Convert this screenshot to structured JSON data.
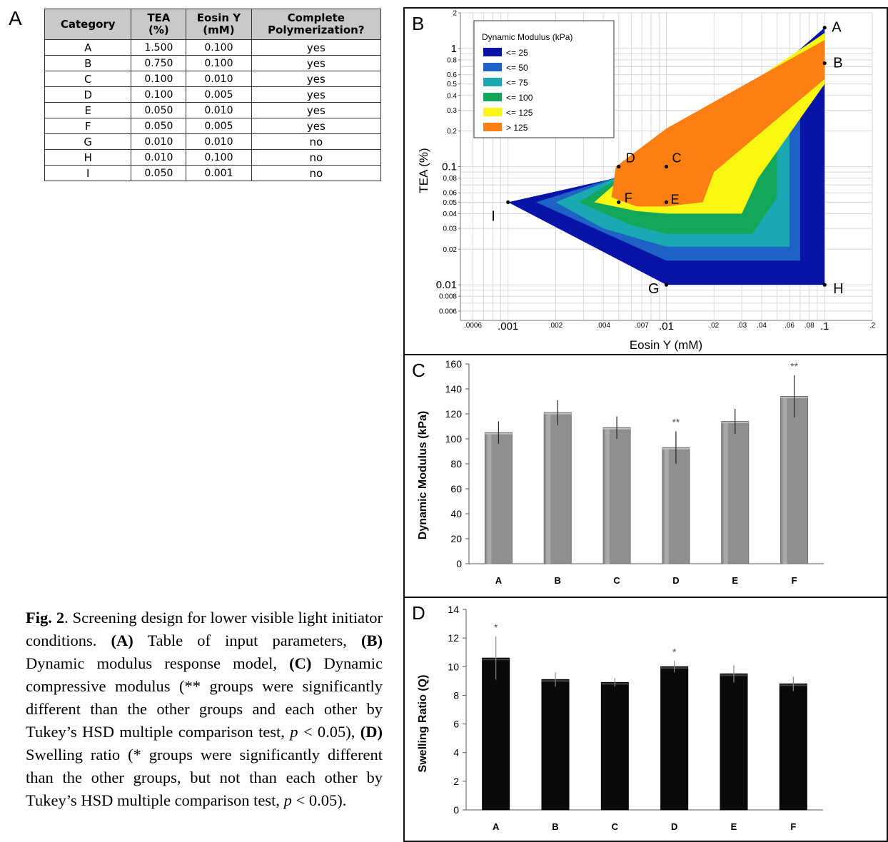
{
  "panel_labels": {
    "a": "A",
    "b": "B",
    "c": "C",
    "d": "D"
  },
  "table": {
    "headers": [
      "Category",
      "TEA (%)",
      "Eosin Y (mM)",
      "Complete Polymerization?"
    ],
    "header_lines": [
      [
        "Category"
      ],
      [
        "TEA",
        "(%)"
      ],
      [
        "Eosin Y",
        "(mM)"
      ],
      [
        "Complete",
        "Polymerization?"
      ]
    ],
    "rows": [
      [
        "A",
        "1.500",
        "0.100",
        "yes"
      ],
      [
        "B",
        "0.750",
        "0.100",
        "yes"
      ],
      [
        "C",
        "0.100",
        "0.010",
        "yes"
      ],
      [
        "D",
        "0.100",
        "0.005",
        "yes"
      ],
      [
        "E",
        "0.050",
        "0.010",
        "yes"
      ],
      [
        "F",
        "0.050",
        "0.005",
        "yes"
      ],
      [
        "G",
        "0.010",
        "0.010",
        "no"
      ],
      [
        "H",
        "0.010",
        "0.100",
        "no"
      ],
      [
        "I",
        "0.050",
        "0.001",
        "no"
      ]
    ]
  },
  "caption": {
    "fig": "Fig. 2",
    "intro": ". Screening design for lower visible light initiator conditions. ",
    "a_tag": "(A)",
    "a_text": " Table of input parameters, ",
    "b_tag": "(B)",
    "b_text": " Dynamic modulus response model, ",
    "c_tag": "(C)",
    "c_text": " Dynamic compressive modulus (** groups were significantly different than the other groups and each other by Tukey’s HSD multiple comparison test, ",
    "p1": "p",
    "c_end": " < 0.05), ",
    "d_tag": "(D)",
    "d_text": " Swelling ratio (* groups were significantly different than the other groups, but not than each other by Tukey’s HSD multiple comparison test, ",
    "p2": "p",
    "d_end": " < 0.05)."
  },
  "chart_data": [
    {
      "type": "contour",
      "xlabel": "Eosin Y (mM)",
      "ylabel": "TEA (%)",
      "x_scale": "log",
      "y_scale": "log",
      "xlim": [
        0.0005,
        0.2
      ],
      "ylim": [
        0.005,
        2
      ],
      "x_ticks": [
        ".0006",
        ".001",
        ".002",
        ".004",
        ".007",
        ".01",
        ".02",
        ".03",
        ".04",
        ".06",
        ".08",
        ".1",
        ".2"
      ],
      "y_ticks": [
        "2",
        "1",
        "0.8",
        "0.6",
        "0.5",
        "0.4",
        "0.3",
        "0.2",
        "0.1",
        "0.08",
        "0.06",
        "0.05",
        "0.04",
        "0.03",
        "0.02",
        "0.01",
        "0.008",
        "0.006"
      ],
      "legend_title": "Dynamic Modulus (kPa)",
      "legend_position": "top-left",
      "legend": [
        {
          "label": "<= 25",
          "color": "#0a13a8"
        },
        {
          "label": "<= 50",
          "color": "#1d62c4"
        },
        {
          "label": "<= 75",
          "color": "#1aa9b2"
        },
        {
          "label": "<= 100",
          "color": "#13a75c"
        },
        {
          "label": "<= 125",
          "color": "#f7f712"
        },
        {
          "label": "> 125",
          "color": "#fb7f13"
        }
      ],
      "design_points": [
        {
          "label": "A",
          "x": 0.1,
          "y": 1.5
        },
        {
          "label": "B",
          "x": 0.1,
          "y": 0.75
        },
        {
          "label": "C",
          "x": 0.01,
          "y": 0.1
        },
        {
          "label": "D",
          "x": 0.005,
          "y": 0.1
        },
        {
          "label": "E",
          "x": 0.01,
          "y": 0.05
        },
        {
          "label": "F",
          "x": 0.005,
          "y": 0.05
        },
        {
          "label": "G",
          "x": 0.01,
          "y": 0.01
        },
        {
          "label": "H",
          "x": 0.1,
          "y": 0.01
        },
        {
          "label": "I",
          "x": 0.001,
          "y": 0.05
        }
      ],
      "regions": [
        {
          "level": "<= 25",
          "color": "#0a13a8",
          "polygon": [
            [
              0.001,
              0.05
            ],
            [
              0.01,
              0.1
            ],
            [
              0.1,
              1.5
            ],
            [
              0.1,
              0.01
            ],
            [
              0.01,
              0.01
            ]
          ]
        },
        {
          "level": "<= 50",
          "color": "#1d62c4",
          "polygon": [
            [
              0.0015,
              0.05
            ],
            [
              0.01,
              0.11
            ],
            [
              0.07,
              0.75
            ],
            [
              0.07,
              0.016
            ],
            [
              0.01,
              0.016
            ]
          ]
        },
        {
          "level": "<= 75",
          "color": "#1aa9b2",
          "polygon": [
            [
              0.002,
              0.05
            ],
            [
              0.01,
              0.12
            ],
            [
              0.06,
              0.7
            ],
            [
              0.06,
              0.021
            ],
            [
              0.01,
              0.021
            ],
            [
              0.004,
              0.03
            ]
          ]
        },
        {
          "level": "<= 100",
          "color": "#13a75c",
          "polygon": [
            [
              0.0028,
              0.05
            ],
            [
              0.01,
              0.14
            ],
            [
              0.05,
              0.65
            ],
            [
              0.05,
              0.055
            ],
            [
              0.035,
              0.027
            ],
            [
              0.01,
              0.027
            ],
            [
              0.006,
              0.032
            ]
          ]
        },
        {
          "level": "<= 125",
          "color": "#f7f712",
          "polygon": [
            [
              0.0035,
              0.05
            ],
            [
              0.01,
              0.17
            ],
            [
              0.1,
              1.35
            ],
            [
              0.1,
              0.5
            ],
            [
              0.038,
              0.08
            ],
            [
              0.03,
              0.04
            ],
            [
              0.01,
              0.04
            ],
            [
              0.0065,
              0.042
            ]
          ]
        },
        {
          "level": "> 125",
          "color": "#fb7f13",
          "polygon": [
            [
              0.0045,
              0.055
            ],
            [
              0.0048,
              0.1
            ],
            [
              0.01,
              0.21
            ],
            [
              0.1,
              1.18
            ],
            [
              0.1,
              0.55
            ],
            [
              0.02,
              0.09
            ],
            [
              0.017,
              0.05
            ],
            [
              0.01,
              0.046
            ],
            [
              0.0065,
              0.046
            ]
          ]
        }
      ]
    },
    {
      "type": "bar",
      "categories": [
        "A",
        "B",
        "C",
        "D",
        "E",
        "F"
      ],
      "values": [
        105,
        121,
        109,
        93,
        114,
        134
      ],
      "error": [
        9,
        10,
        9,
        13,
        10,
        17
      ],
      "annotations": [
        "",
        "",
        "",
        "**",
        "",
        "**"
      ],
      "ylabel": "Dynamic Modulus (kPa)",
      "ylim": [
        0,
        160
      ],
      "yticks": [
        0,
        20,
        40,
        60,
        80,
        100,
        120,
        140,
        160
      ],
      "color": "#8f8f8f"
    },
    {
      "type": "bar",
      "categories": [
        "A",
        "B",
        "C",
        "D",
        "E",
        "F"
      ],
      "values": [
        10.6,
        9.1,
        8.9,
        10.0,
        9.5,
        8.8
      ],
      "error": [
        1.5,
        0.5,
        0.3,
        0.4,
        0.6,
        0.5
      ],
      "annotations": [
        "*",
        "",
        "",
        "*",
        "",
        ""
      ],
      "ylabel": "Swelling Ratio (Q)",
      "ylim": [
        0,
        14
      ],
      "yticks": [
        0,
        2,
        4,
        6,
        8,
        10,
        12,
        14
      ],
      "color": "#0a0a0a"
    }
  ]
}
